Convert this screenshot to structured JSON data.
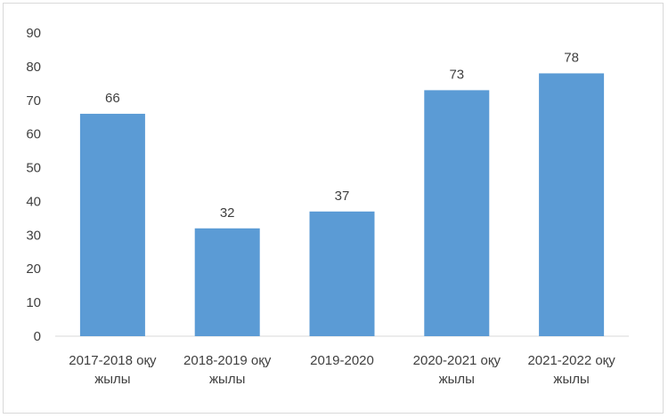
{
  "chart_data": {
    "type": "bar",
    "categories": [
      [
        "2017-2018 оқу",
        "жылы"
      ],
      [
        "2018-2019 оқу",
        "жылы"
      ],
      [
        "2019-2020"
      ],
      [
        "2020-2021 оқу",
        "жылы"
      ],
      [
        "2021-2022 оқу",
        "жылы"
      ]
    ],
    "values": [
      66,
      32,
      37,
      73,
      78
    ],
    "ylim": [
      0,
      90
    ],
    "yticks": [
      0,
      10,
      20,
      30,
      40,
      50,
      60,
      70,
      80,
      90
    ],
    "grid": false,
    "legend": "none",
    "title": "",
    "xlabel": "",
    "ylabel": "",
    "colors": {
      "bar": "#5b9bd5",
      "axis": "#d9d9d9",
      "text": "#3f3f3f"
    }
  }
}
